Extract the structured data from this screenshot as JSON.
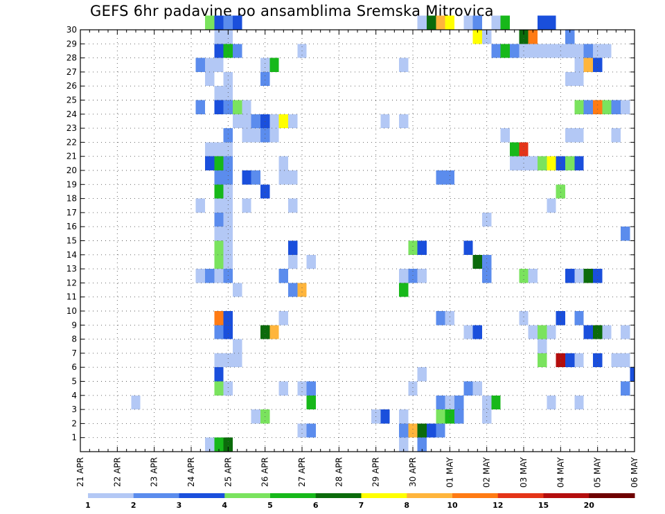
{
  "chart_data": {
    "type": "heatmap",
    "title": "GEFS 6hr padavine po ansamblima Sremska Mitrovica",
    "x_ticks": [
      "21 APR",
      "22 APR",
      "23 APR",
      "24 APR",
      "25 APR",
      "26 APR",
      "27 APR",
      "28 APR",
      "29 APR",
      "30 APR",
      "01 MAY",
      "02 MAY",
      "03 MAY",
      "04 MAY",
      "05 MAY",
      "06 MAY"
    ],
    "y_ticks": [
      1,
      2,
      3,
      4,
      5,
      6,
      7,
      8,
      9,
      10,
      11,
      12,
      13,
      14,
      15,
      16,
      17,
      18,
      19,
      20,
      21,
      22,
      23,
      24,
      25,
      26,
      27,
      28,
      29,
      30
    ],
    "time_steps_per_day": 4,
    "x_start": "21 APR 00Z",
    "n_steps": 61,
    "grid": true,
    "legend": {
      "placement": "bottom",
      "labels": [
        "1",
        "2",
        "3",
        "4",
        "5",
        "6",
        "7",
        "8",
        "10",
        "12",
        "15",
        "20"
      ],
      "colors": [
        "#b3c8f5",
        "#5b8ced",
        "#1a4fdc",
        "#7ae35e",
        "#17b81a",
        "#0b6b0b",
        "#ffff00",
        "#ffb53c",
        "#ff7b14",
        "#e43418",
        "#b40e0e",
        "#6e0000"
      ]
    },
    "colors": {
      "1": "#b3c8f5",
      "2": "#5b8ced",
      "3": "#1a4fdc",
      "4": "#7ae35e",
      "5": "#17b81a",
      "6": "#0b6b0b",
      "7": "#ffff00",
      "8": "#ffb53c",
      "10": "#ff7b14",
      "12": "#e43418",
      "15": "#b40e0e",
      "20": "#6e0000"
    },
    "cells": {
      "30": [
        [
          14,
          4
        ],
        [
          15,
          3
        ],
        [
          16,
          2
        ],
        [
          17,
          3
        ],
        [
          37,
          1
        ],
        [
          38,
          6
        ],
        [
          39,
          8
        ],
        [
          40,
          7
        ],
        [
          42,
          1
        ],
        [
          43,
          2
        ],
        [
          45,
          1
        ],
        [
          46,
          5
        ],
        [
          50,
          3
        ],
        [
          51,
          3
        ]
      ],
      "29": [
        [
          15,
          1
        ],
        [
          16,
          1
        ],
        [
          43,
          7
        ],
        [
          44,
          1
        ],
        [
          48,
          6
        ],
        [
          49,
          10
        ],
        [
          53,
          2
        ]
      ],
      "28": [
        [
          15,
          3
        ],
        [
          16,
          5
        ],
        [
          17,
          2
        ],
        [
          24,
          1
        ],
        [
          45,
          2
        ],
        [
          46,
          5
        ],
        [
          47,
          2
        ],
        [
          48,
          1
        ],
        [
          49,
          1
        ],
        [
          50,
          1
        ],
        [
          51,
          1
        ],
        [
          52,
          1
        ],
        [
          53,
          1
        ],
        [
          54,
          1
        ],
        [
          55,
          2
        ],
        [
          56,
          1
        ],
        [
          57,
          1
        ]
      ],
      "27": [
        [
          13,
          2
        ],
        [
          14,
          1
        ],
        [
          15,
          1
        ],
        [
          20,
          1
        ],
        [
          21,
          5
        ],
        [
          35,
          1
        ],
        [
          54,
          1
        ],
        [
          55,
          8
        ],
        [
          56,
          3
        ]
      ],
      "26": [
        [
          14,
          1
        ],
        [
          16,
          1
        ],
        [
          20,
          2
        ],
        [
          53,
          1
        ],
        [
          54,
          1
        ]
      ],
      "25": [
        [
          15,
          1
        ],
        [
          16,
          1
        ]
      ],
      "24": [
        [
          13,
          2
        ],
        [
          15,
          3
        ],
        [
          16,
          2
        ],
        [
          17,
          4
        ],
        [
          18,
          1
        ],
        [
          54,
          4
        ],
        [
          55,
          2
        ],
        [
          56,
          10
        ],
        [
          57,
          4
        ],
        [
          58,
          2
        ],
        [
          59,
          1
        ]
      ],
      "23": [
        [
          17,
          1
        ],
        [
          18,
          1
        ],
        [
          19,
          2
        ],
        [
          20,
          3
        ],
        [
          21,
          1
        ],
        [
          22,
          7
        ],
        [
          23,
          1
        ],
        [
          33,
          1
        ],
        [
          35,
          1
        ]
      ],
      "22": [
        [
          16,
          2
        ],
        [
          18,
          1
        ],
        [
          19,
          1
        ],
        [
          20,
          2
        ],
        [
          21,
          1
        ],
        [
          46,
          1
        ],
        [
          53,
          1
        ],
        [
          54,
          1
        ],
        [
          58,
          1
        ]
      ],
      "21": [
        [
          14,
          1
        ],
        [
          15,
          1
        ],
        [
          16,
          1
        ],
        [
          47,
          5
        ],
        [
          48,
          12
        ]
      ],
      "20": [
        [
          14,
          3
        ],
        [
          15,
          5
        ],
        [
          16,
          2
        ],
        [
          22,
          1
        ],
        [
          47,
          1
        ],
        [
          48,
          1
        ],
        [
          49,
          1
        ],
        [
          50,
          4
        ],
        [
          51,
          7
        ],
        [
          52,
          3
        ],
        [
          53,
          4
        ],
        [
          54,
          3
        ]
      ],
      "19": [
        [
          15,
          2
        ],
        [
          16,
          2
        ],
        [
          18,
          3
        ],
        [
          19,
          2
        ],
        [
          22,
          1
        ],
        [
          23,
          1
        ],
        [
          39,
          2
        ],
        [
          40,
          2
        ]
      ],
      "18": [
        [
          15,
          5
        ],
        [
          16,
          1
        ],
        [
          20,
          3
        ],
        [
          52,
          4
        ]
      ],
      "17": [
        [
          13,
          1
        ],
        [
          15,
          1
        ],
        [
          16,
          1
        ],
        [
          18,
          1
        ],
        [
          23,
          1
        ],
        [
          51,
          1
        ]
      ],
      "16": [
        [
          15,
          2
        ],
        [
          16,
          1
        ],
        [
          44,
          1
        ]
      ],
      "15": [
        [
          15,
          1
        ],
        [
          16,
          1
        ],
        [
          59,
          2
        ]
      ],
      "14": [
        [
          15,
          4
        ],
        [
          16,
          1
        ],
        [
          23,
          3
        ],
        [
          36,
          4
        ],
        [
          37,
          3
        ],
        [
          42,
          3
        ]
      ],
      "13": [
        [
          15,
          4
        ],
        [
          16,
          1
        ],
        [
          23,
          1
        ],
        [
          25,
          1
        ],
        [
          43,
          6
        ],
        [
          44,
          2
        ]
      ],
      "12": [
        [
          13,
          1
        ],
        [
          14,
          2
        ],
        [
          15,
          1
        ],
        [
          16,
          2
        ],
        [
          22,
          2
        ],
        [
          35,
          1
        ],
        [
          36,
          2
        ],
        [
          37,
          1
        ],
        [
          44,
          2
        ],
        [
          48,
          4
        ],
        [
          49,
          1
        ],
        [
          53,
          3
        ],
        [
          54,
          1
        ],
        [
          55,
          6
        ],
        [
          56,
          3
        ]
      ],
      "11": [
        [
          17,
          1
        ],
        [
          23,
          2
        ],
        [
          24,
          8
        ],
        [
          35,
          5
        ]
      ],
      "9": [
        [
          15,
          10
        ],
        [
          16,
          3
        ],
        [
          22,
          1
        ],
        [
          39,
          2
        ],
        [
          40,
          1
        ],
        [
          48,
          1
        ],
        [
          52,
          3
        ],
        [
          54,
          2
        ]
      ],
      "8": [
        [
          15,
          2
        ],
        [
          16,
          3
        ],
        [
          20,
          6
        ],
        [
          21,
          8
        ],
        [
          42,
          1
        ],
        [
          43,
          3
        ],
        [
          49,
          1
        ],
        [
          50,
          4
        ],
        [
          51,
          1
        ],
        [
          55,
          3
        ],
        [
          56,
          6
        ],
        [
          57,
          1
        ],
        [
          59,
          1
        ]
      ],
      "7": [
        [
          17,
          1
        ],
        [
          50,
          1
        ]
      ],
      "6": [
        [
          15,
          1
        ],
        [
          16,
          1
        ],
        [
          17,
          1
        ],
        [
          50,
          4
        ],
        [
          52,
          15
        ],
        [
          53,
          3
        ],
        [
          54,
          1
        ],
        [
          56,
          3
        ],
        [
          58,
          1
        ],
        [
          59,
          1
        ]
      ],
      "5": [
        [
          15,
          3
        ],
        [
          37,
          1
        ],
        [
          60,
          3
        ]
      ],
      "4": [
        [
          15,
          4
        ],
        [
          16,
          1
        ],
        [
          22,
          1
        ],
        [
          24,
          1
        ],
        [
          25,
          2
        ],
        [
          36,
          1
        ],
        [
          42,
          2
        ],
        [
          43,
          1
        ],
        [
          59,
          2
        ]
      ],
      "3": [
        [
          6,
          1
        ],
        [
          25,
          5
        ],
        [
          39,
          2
        ],
        [
          40,
          1
        ],
        [
          41,
          2
        ],
        [
          44,
          1
        ],
        [
          45,
          5
        ],
        [
          51,
          1
        ],
        [
          54,
          1
        ]
      ],
      "2": [
        [
          19,
          1
        ],
        [
          20,
          4
        ],
        [
          32,
          1
        ],
        [
          33,
          3
        ],
        [
          35,
          1
        ],
        [
          39,
          4
        ],
        [
          40,
          5
        ],
        [
          41,
          2
        ],
        [
          44,
          1
        ]
      ],
      "1": [
        [
          24,
          1
        ],
        [
          25,
          2
        ],
        [
          35,
          2
        ],
        [
          36,
          8
        ],
        [
          37,
          6
        ],
        [
          38,
          3
        ],
        [
          39,
          2
        ]
      ],
      "0": [
        [
          14,
          1
        ],
        [
          15,
          5
        ],
        [
          16,
          6
        ],
        [
          35,
          1
        ],
        [
          37,
          2
        ]
      ]
    }
  }
}
